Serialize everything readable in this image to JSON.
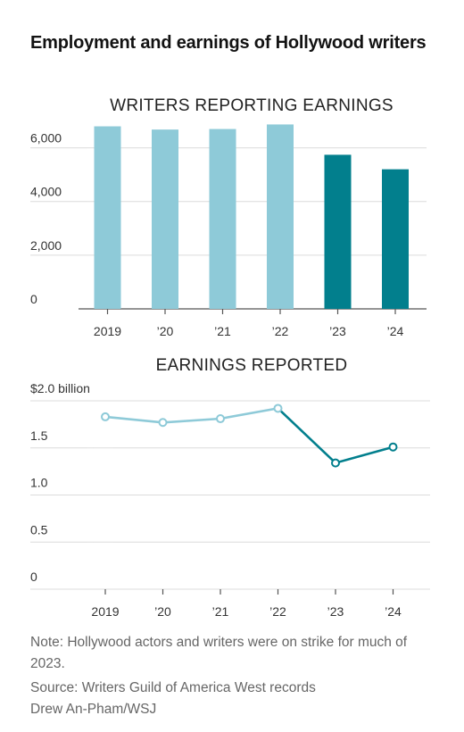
{
  "title": "Employment and earnings of Hollywood writers",
  "colors": {
    "light": "#8ecad8",
    "dark": "#027f8d"
  },
  "chart_data": [
    {
      "type": "bar",
      "title": "WRITERS REPORTING EARNINGS",
      "categories": [
        "2019",
        "’20",
        "’21",
        "’22",
        "’23",
        "’24"
      ],
      "values": [
        6800,
        6680,
        6700,
        6870,
        5740,
        5200
      ],
      "highlight": [
        false,
        false,
        false,
        false,
        true,
        true
      ],
      "ylim": [
        0,
        7000
      ],
      "yticks": [
        0,
        2000,
        4000,
        6000
      ],
      "ytick_labels": [
        "0",
        "2,000",
        "4,000",
        "6,000"
      ],
      "grid": true
    },
    {
      "type": "line",
      "title": "EARNINGS REPORTED",
      "categories": [
        "2019",
        "’20",
        "’21",
        "’22",
        "’23",
        "’24"
      ],
      "values": [
        1.83,
        1.77,
        1.81,
        1.92,
        1.34,
        1.51
      ],
      "highlight_from_index": 3,
      "ylim": [
        0,
        2.0
      ],
      "yticks": [
        0,
        0.5,
        1.0,
        1.5,
        2.0
      ],
      "ytick_labels": [
        "0",
        "0.5",
        "1.0",
        "1.5",
        "$2.0 billion"
      ],
      "grid": true
    }
  ],
  "notes": {
    "note": "Note: Hollywood actors and writers were on strike for much of 2023.",
    "source": "Source: Writers Guild of America West records",
    "credit": "Drew An-Pham/WSJ"
  }
}
